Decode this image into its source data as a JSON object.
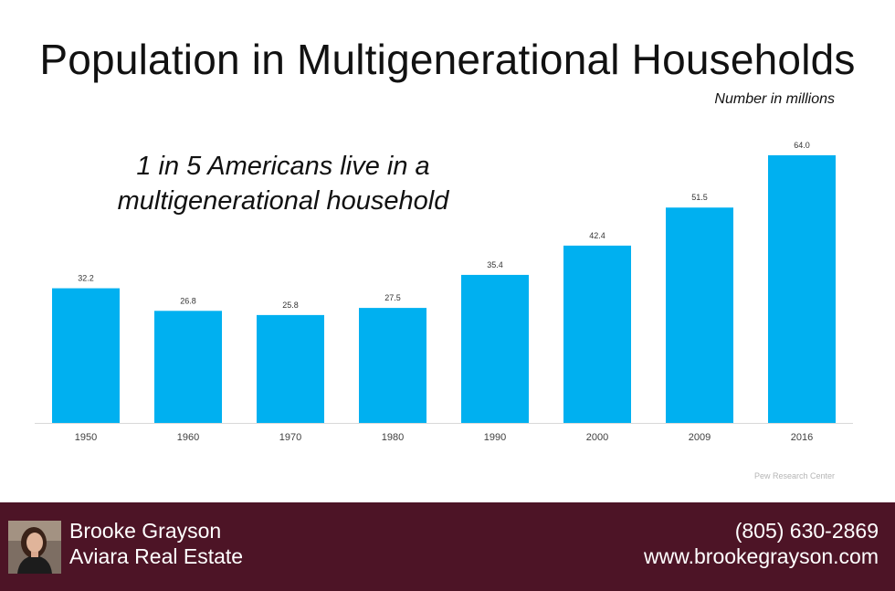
{
  "chart_data": {
    "type": "bar",
    "title": "Population in Multigenerational Households",
    "subtitle": "Number in millions",
    "annotation": "1 in 5 Americans live in a multigenerational household",
    "source": "Pew Research Center",
    "categories": [
      "1950",
      "1960",
      "1970",
      "1980",
      "1990",
      "2000",
      "2009",
      "2016"
    ],
    "values": [
      32.2,
      26.8,
      25.8,
      27.5,
      35.4,
      42.4,
      51.5,
      64.0
    ],
    "value_labels": [
      "32.2",
      "26.8",
      "25.8",
      "27.5",
      "35.4",
      "42.4",
      "51.5",
      "64.0"
    ],
    "bar_color": "#00b0f0",
    "grid": false,
    "legend": "none"
  },
  "footer": {
    "name": "Brooke Grayson",
    "company": "Aviara Real Estate",
    "phone": "(805) 630-2869",
    "website": "www.brookegrayson.com",
    "background_color": "#4d1426"
  }
}
